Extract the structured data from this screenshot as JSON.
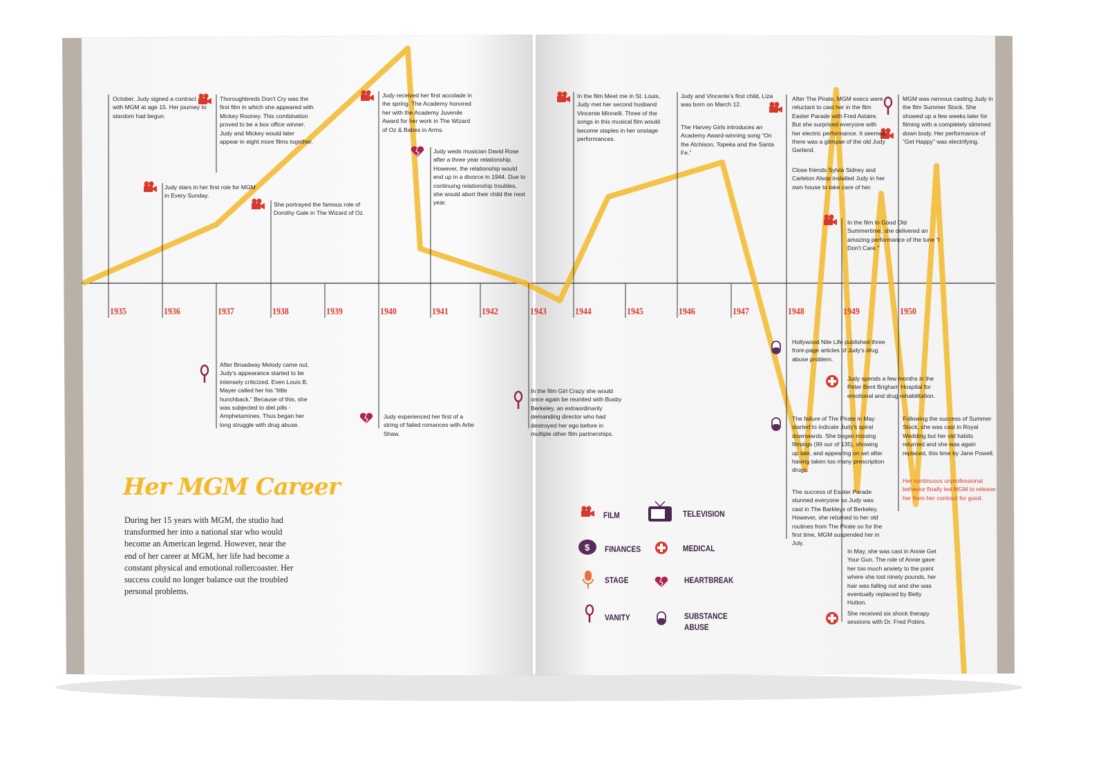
{
  "title": "Her MGM Career",
  "body": "During her 15 years with MGM, the studio had transformed her into a national star who would become an American legend. However, near the end of her career at MGM, her life had become a constant physical and emotional rollercoaster. Her success could no longer balance out the troubled personal problems.",
  "years": [
    "1935",
    "1936",
    "1937",
    "1938",
    "1939",
    "1940",
    "1941",
    "1942",
    "1943",
    "1944",
    "1945",
    "1946",
    "1947",
    "1948",
    "1949",
    "1950"
  ],
  "events": [
    {
      "text": "October, Judy signed a contract with MGM at age 15. Her journey to stardom had begun."
    },
    {
      "text": "Thoroughbreds Don't Cry was the first film in which she appeared with Mickey Rooney. This combination proved to be a box office winner. Judy and Mickey would later appear in eight more films together."
    },
    {
      "text": "Judy stars in her first role for MGM in Every Sunday."
    },
    {
      "text": "She portrayed the famous role of Dorothy Gale in The Wizard of Oz."
    },
    {
      "text": "Judy received her first accolade in the spring. The Academy honored her with the Academy Juvenile Award for her work in The Wizard of Oz & Babes in Arms."
    },
    {
      "text": "Judy weds musician David Rose after a three year relationship. However, the relationship would end up in a divorce in 1944. Due to continuing relationship troubles, she would abort their child the next year."
    },
    {
      "text": "In the film Meet me in St. Louis, Judy met her second husband Vincente Minnelli. Three of the songs in this musical film would become staples in her onstage performances."
    },
    {
      "text": "Judy and Vincente's first child, Liza was born on March 12."
    },
    {
      "text": "The Harvey Girls introduces an Academy Award-winning song “On the Atchison, Topeka and the Santa Fe.”"
    },
    {
      "text": "After The Pirate, MGM execs were reluctant to cast her in the film Easter Parade with Fred Astaire. But she surprised everyone with her electric performance. It seemed there was a glimpse of the old Judy Garland."
    },
    {
      "text": "Close friends Sylvia Sidney and Carleton Alsop installed Judy in her own house to take care of her."
    },
    {
      "text": "In the film In Good Old Summertime, she delivered an amazing performance of the tune “I Don't Care.”"
    },
    {
      "text": "MGM was nervous casting Judy in the film Summer Stock. She showed up a few weeks later for filming with a completely slimmed down body. Her performance of “Get Happy” was electrifying."
    },
    {
      "text": "After Broadway Melody came out, Judy's appearance started to be intensely criticized. Even Louis B. Mayer called her his “little hunchback.” Because of this, she was subjected to diet pills - Amphetamines. Thus began her long struggle with drug abuse."
    },
    {
      "text": "Judy experienced her first of a string of failed romances with Artie Shaw."
    },
    {
      "text": "In the film Girl Crazy she would once again be reunited with Busby Berkeley, an extraordinarily demanding director who had destroyed her ego before in multiple other film partnerships."
    },
    {
      "text": "Hollywood Nite Life published three front-page articles of Judy's drug abuse problem."
    },
    {
      "text": "Judy spends a few months in the Peter Bent Brigham Hospital for emotional and drug rehabilitation."
    },
    {
      "text": "The failure of The Pirate in May started to indicate Judy's spiral downwards. She began missing filmings (99 our of 135), showing up late, and appearing on set after having taken too many prescription drugs."
    },
    {
      "text": "The success of Easter Parade stunned everyone so Judy was cast in The Barkleys of Berkeley. However, she returned to her old routines from The Pirate so for the first time, MGM suspended her in July."
    },
    {
      "text": "Following the success of Summer Stock, she was cast in Royal Wedding but her old habits returned and she was again replaced, this time by Jane Powell."
    },
    {
      "text": "Her continuous unprofessional behavior finally led MGM to release her from her contract for good."
    },
    {
      "text": "In May, she was cast in Annie Get Your Gun. The role of Annie gave her too much anxiety to the point where she lost ninety pounds, her hair was falling out and she was eventually replaced by Betty Hutton."
    },
    {
      "text": "She received six shock therapy sessions with Dr. Fred Pobirs."
    }
  ],
  "legend": [
    {
      "label": "FILM"
    },
    {
      "label": "TELEVISION"
    },
    {
      "label": "FINANCES"
    },
    {
      "label": "MEDICAL"
    },
    {
      "label": "STAGE"
    },
    {
      "label": "HEARTBREAK"
    },
    {
      "label": "VANITY"
    },
    {
      "label": "SUBSTANCE ABUSE"
    }
  ]
}
